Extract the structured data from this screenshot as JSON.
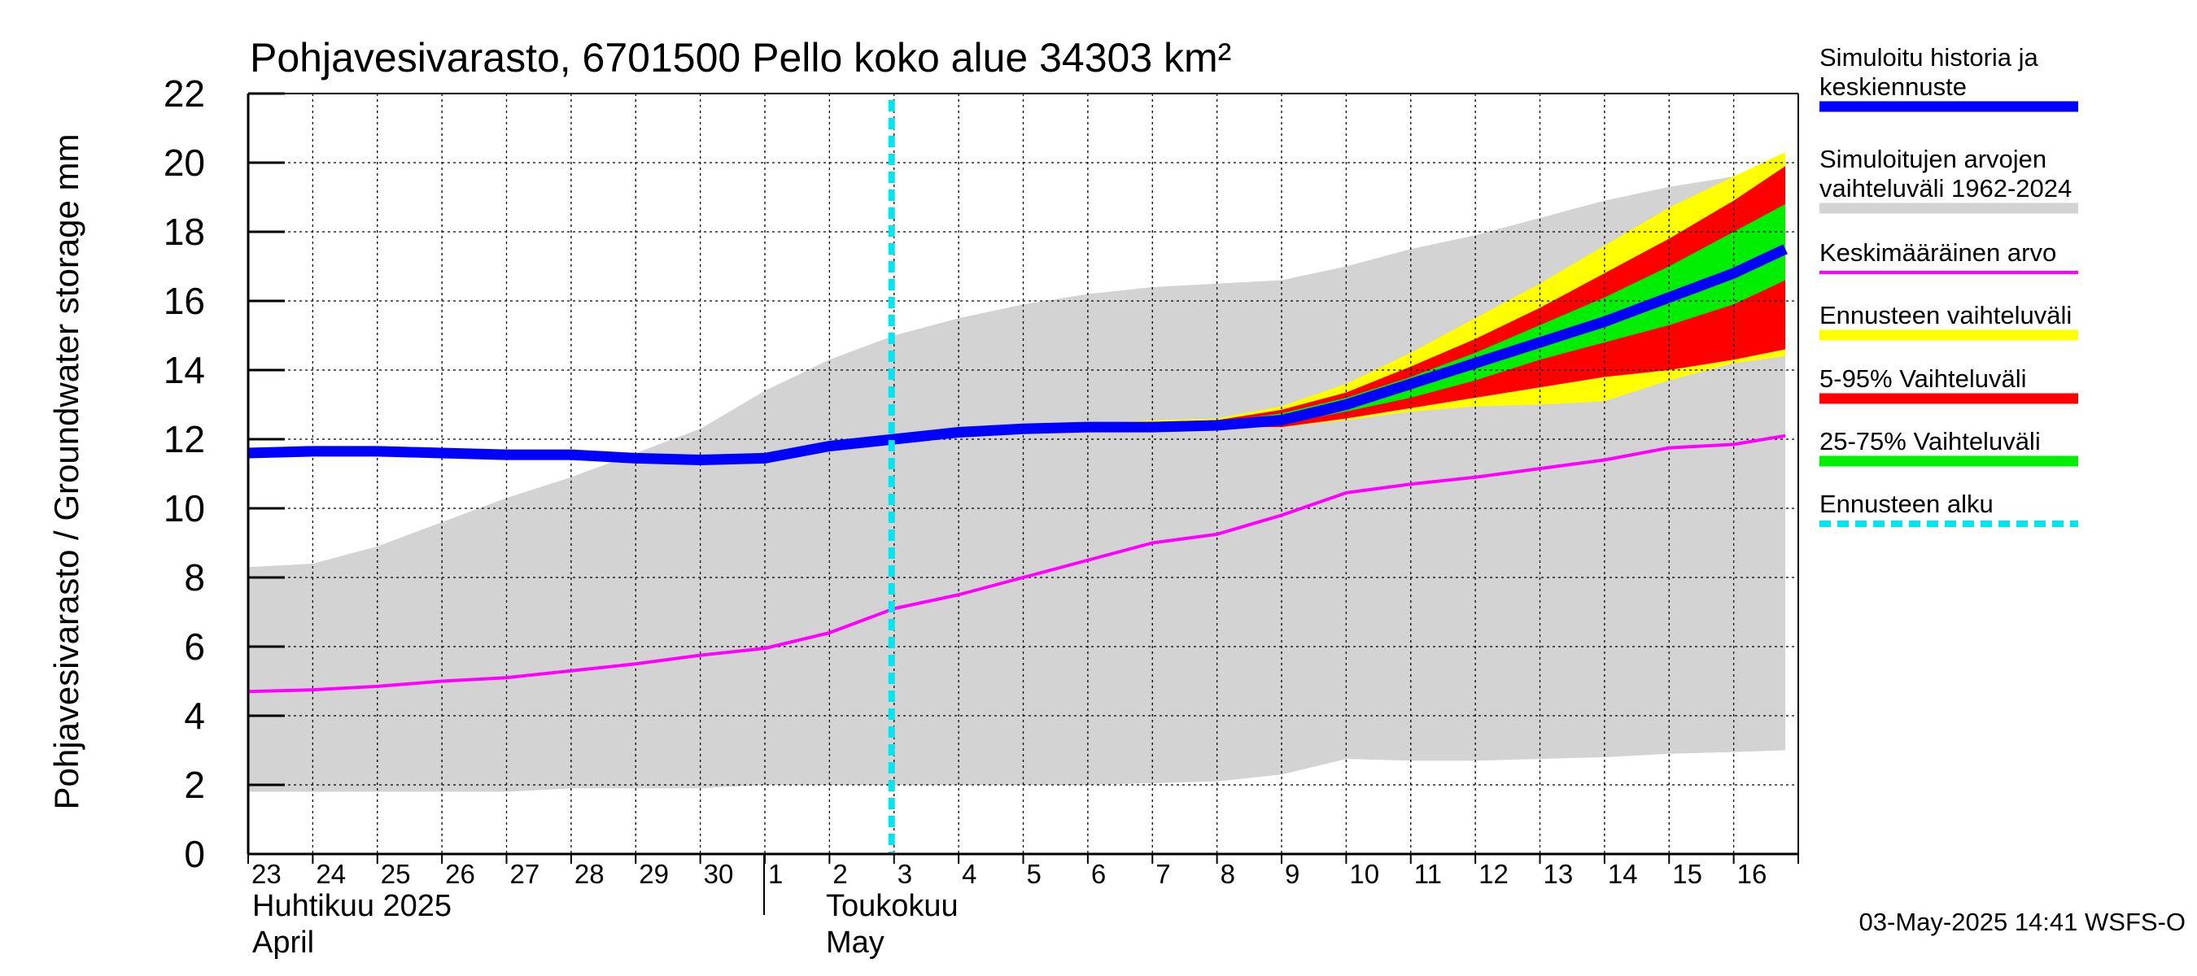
{
  "chart_data": {
    "type": "area",
    "title": "Pohjavesivarasto, 6701500 Pello koko alue 34303 km²",
    "ylabel": "Pohjavesivarasto / Groundwater storage   mm",
    "ylim": [
      0,
      22
    ],
    "yticks": [
      "0",
      "2",
      "4",
      "6",
      "8",
      "10",
      "12",
      "14",
      "16",
      "18",
      "20",
      "22"
    ],
    "grid": true,
    "x_tick_labels": [
      "23",
      "24",
      "25",
      "26",
      "27",
      "28",
      "29",
      "30",
      "1",
      "2",
      "3",
      "4",
      "5",
      "6",
      "7",
      "8",
      "9",
      "10",
      "11",
      "12",
      "13",
      "14",
      "15",
      "16"
    ],
    "month_labels": [
      {
        "finnish": "Huhtikuu  2025",
        "english": "April"
      },
      {
        "finnish": "Toukokuu",
        "english": "May"
      }
    ],
    "forecast_start_day_index": 10,
    "colors": {
      "history_line": "#0000ff",
      "historical_range": "#d3d3d3",
      "mean_line": "#ff00ff",
      "forecast_range": "#ffff00",
      "range_5_95": "#ff0000",
      "range_25_75": "#00ee00",
      "forecast_start": "#00e5ee"
    },
    "series": [
      {
        "name": "Simuloitujen arvojen vaihteluväli 1962-2024 (upper)",
        "x": [
          0,
          1,
          2,
          3,
          4,
          5,
          6,
          7,
          8,
          9,
          10,
          11,
          12,
          13,
          14,
          15,
          16,
          17,
          18,
          19,
          20,
          21,
          22,
          23,
          23.8
        ],
        "values": [
          8.3,
          8.4,
          8.9,
          9.6,
          10.3,
          10.9,
          11.6,
          12.3,
          13.4,
          14.3,
          15.0,
          15.5,
          15.9,
          16.2,
          16.4,
          16.5,
          16.6,
          17.0,
          17.5,
          17.9,
          18.4,
          18.9,
          19.3,
          19.6,
          19.8
        ]
      },
      {
        "name": "Simuloitujen arvojen vaihteluväli 1962-2024 (lower)",
        "x": [
          0,
          1,
          2,
          3,
          4,
          5,
          6,
          7,
          8,
          9,
          10,
          11,
          12,
          13,
          14,
          15,
          16,
          17,
          18,
          19,
          20,
          21,
          22,
          23,
          23.8
        ],
        "values": [
          1.8,
          1.8,
          1.8,
          1.8,
          1.8,
          1.9,
          1.9,
          1.9,
          2.0,
          2.0,
          2.0,
          2.0,
          2.0,
          2.0,
          2.05,
          2.1,
          2.3,
          2.75,
          2.7,
          2.7,
          2.75,
          2.8,
          2.9,
          2.95,
          3.0
        ]
      },
      {
        "name": "Ennusteen vaihteluväli (upper)",
        "x": [
          10,
          11,
          12,
          13,
          14,
          15,
          16,
          17,
          18,
          19,
          20,
          21,
          22,
          23,
          23.8
        ],
        "values": [
          12.0,
          12.2,
          12.35,
          12.45,
          12.55,
          12.6,
          12.95,
          13.6,
          14.5,
          15.5,
          16.5,
          17.6,
          18.7,
          19.6,
          20.3
        ]
      },
      {
        "name": "Ennusteen vaihteluväli (lower)",
        "x": [
          10,
          11,
          12,
          13,
          14,
          15,
          16,
          17,
          18,
          19,
          20,
          21,
          22,
          23,
          23.8
        ],
        "values": [
          12.0,
          12.2,
          12.3,
          12.35,
          12.35,
          12.35,
          12.35,
          12.55,
          12.8,
          12.95,
          13.0,
          13.1,
          13.7,
          14.2,
          14.4
        ]
      },
      {
        "name": "5-95% Vaihteluväli (upper)",
        "x": [
          10,
          11,
          12,
          13,
          14,
          15,
          16,
          17,
          18,
          19,
          20,
          21,
          22,
          23,
          23.8
        ],
        "values": [
          12.0,
          12.2,
          12.35,
          12.45,
          12.5,
          12.55,
          12.85,
          13.35,
          14.1,
          14.9,
          15.8,
          16.8,
          17.8,
          18.9,
          19.9
        ]
      },
      {
        "name": "5-95% Vaihteluväli (lower)",
        "x": [
          10,
          11,
          12,
          13,
          14,
          15,
          16,
          17,
          18,
          19,
          20,
          21,
          22,
          23,
          23.8
        ],
        "values": [
          12.0,
          12.2,
          12.3,
          12.35,
          12.35,
          12.35,
          12.35,
          12.6,
          12.9,
          13.2,
          13.5,
          13.8,
          14.0,
          14.3,
          14.6
        ]
      },
      {
        "name": "25-75% Vaihteluväli (upper)",
        "x": [
          10,
          11,
          12,
          13,
          14,
          15,
          16,
          17,
          18,
          19,
          20,
          21,
          22,
          23,
          23.8
        ],
        "values": [
          12.0,
          12.2,
          12.35,
          12.4,
          12.45,
          12.5,
          12.75,
          13.2,
          13.8,
          14.5,
          15.3,
          16.1,
          17.0,
          18.0,
          18.8
        ]
      },
      {
        "name": "25-75% Vaihteluväli (lower)",
        "x": [
          10,
          11,
          12,
          13,
          14,
          15,
          16,
          17,
          18,
          19,
          20,
          21,
          22,
          23,
          23.8
        ],
        "values": [
          12.0,
          12.2,
          12.3,
          12.35,
          12.35,
          12.4,
          12.45,
          12.8,
          13.2,
          13.7,
          14.3,
          14.8,
          15.3,
          15.9,
          16.6
        ]
      },
      {
        "name": "Simuloitu historia ja keskiennuste",
        "x": [
          0,
          1,
          2,
          3,
          4,
          5,
          6,
          7,
          8,
          9,
          10,
          11,
          12,
          13,
          14,
          15,
          16,
          17,
          18,
          19,
          20,
          21,
          22,
          23,
          23.8
        ],
        "values": [
          11.6,
          11.65,
          11.65,
          11.6,
          11.55,
          11.55,
          11.45,
          11.4,
          11.45,
          11.8,
          12.0,
          12.2,
          12.3,
          12.35,
          12.35,
          12.4,
          12.55,
          13.0,
          13.6,
          14.2,
          14.8,
          15.4,
          16.1,
          16.8,
          17.5
        ]
      },
      {
        "name": "Keskimääräinen arvo",
        "x": [
          0,
          1,
          2,
          3,
          4,
          5,
          6,
          7,
          8,
          9,
          10,
          11,
          12,
          13,
          14,
          15,
          16,
          17,
          18,
          19,
          20,
          21,
          22,
          23,
          23.8
        ],
        "values": [
          4.7,
          4.75,
          4.85,
          5.0,
          5.1,
          5.3,
          5.5,
          5.75,
          5.95,
          6.4,
          7.1,
          7.5,
          8.0,
          8.5,
          9.0,
          9.25,
          9.8,
          10.45,
          10.7,
          10.9,
          11.15,
          11.4,
          11.75,
          11.85,
          12.1
        ]
      }
    ]
  },
  "legend": [
    {
      "lines": [
        "Simuloitu historia ja",
        "keskiennuste"
      ],
      "color": "#0000ff",
      "style": "solid"
    },
    {
      "lines": [
        "Simuloitujen arvojen",
        "vaihteluväli 1962-2024"
      ],
      "color": "#d3d3d3",
      "style": "solid"
    },
    {
      "lines": [
        "Keskimääräinen arvo"
      ],
      "color": "#ff00ff",
      "style": "thin"
    },
    {
      "lines": [
        "Ennusteen vaihteluväli"
      ],
      "color": "#ffff00",
      "style": "solid"
    },
    {
      "lines": [
        "5-95% Vaihteluväli"
      ],
      "color": "#ff0000",
      "style": "solid"
    },
    {
      "lines": [
        "25-75% Vaihteluväli"
      ],
      "color": "#00ee00",
      "style": "solid"
    },
    {
      "lines": [
        "Ennusteen alku"
      ],
      "color": "#00e5ee",
      "style": "dashed"
    }
  ],
  "footer": "03-May-2025 14:41 WSFS-O"
}
